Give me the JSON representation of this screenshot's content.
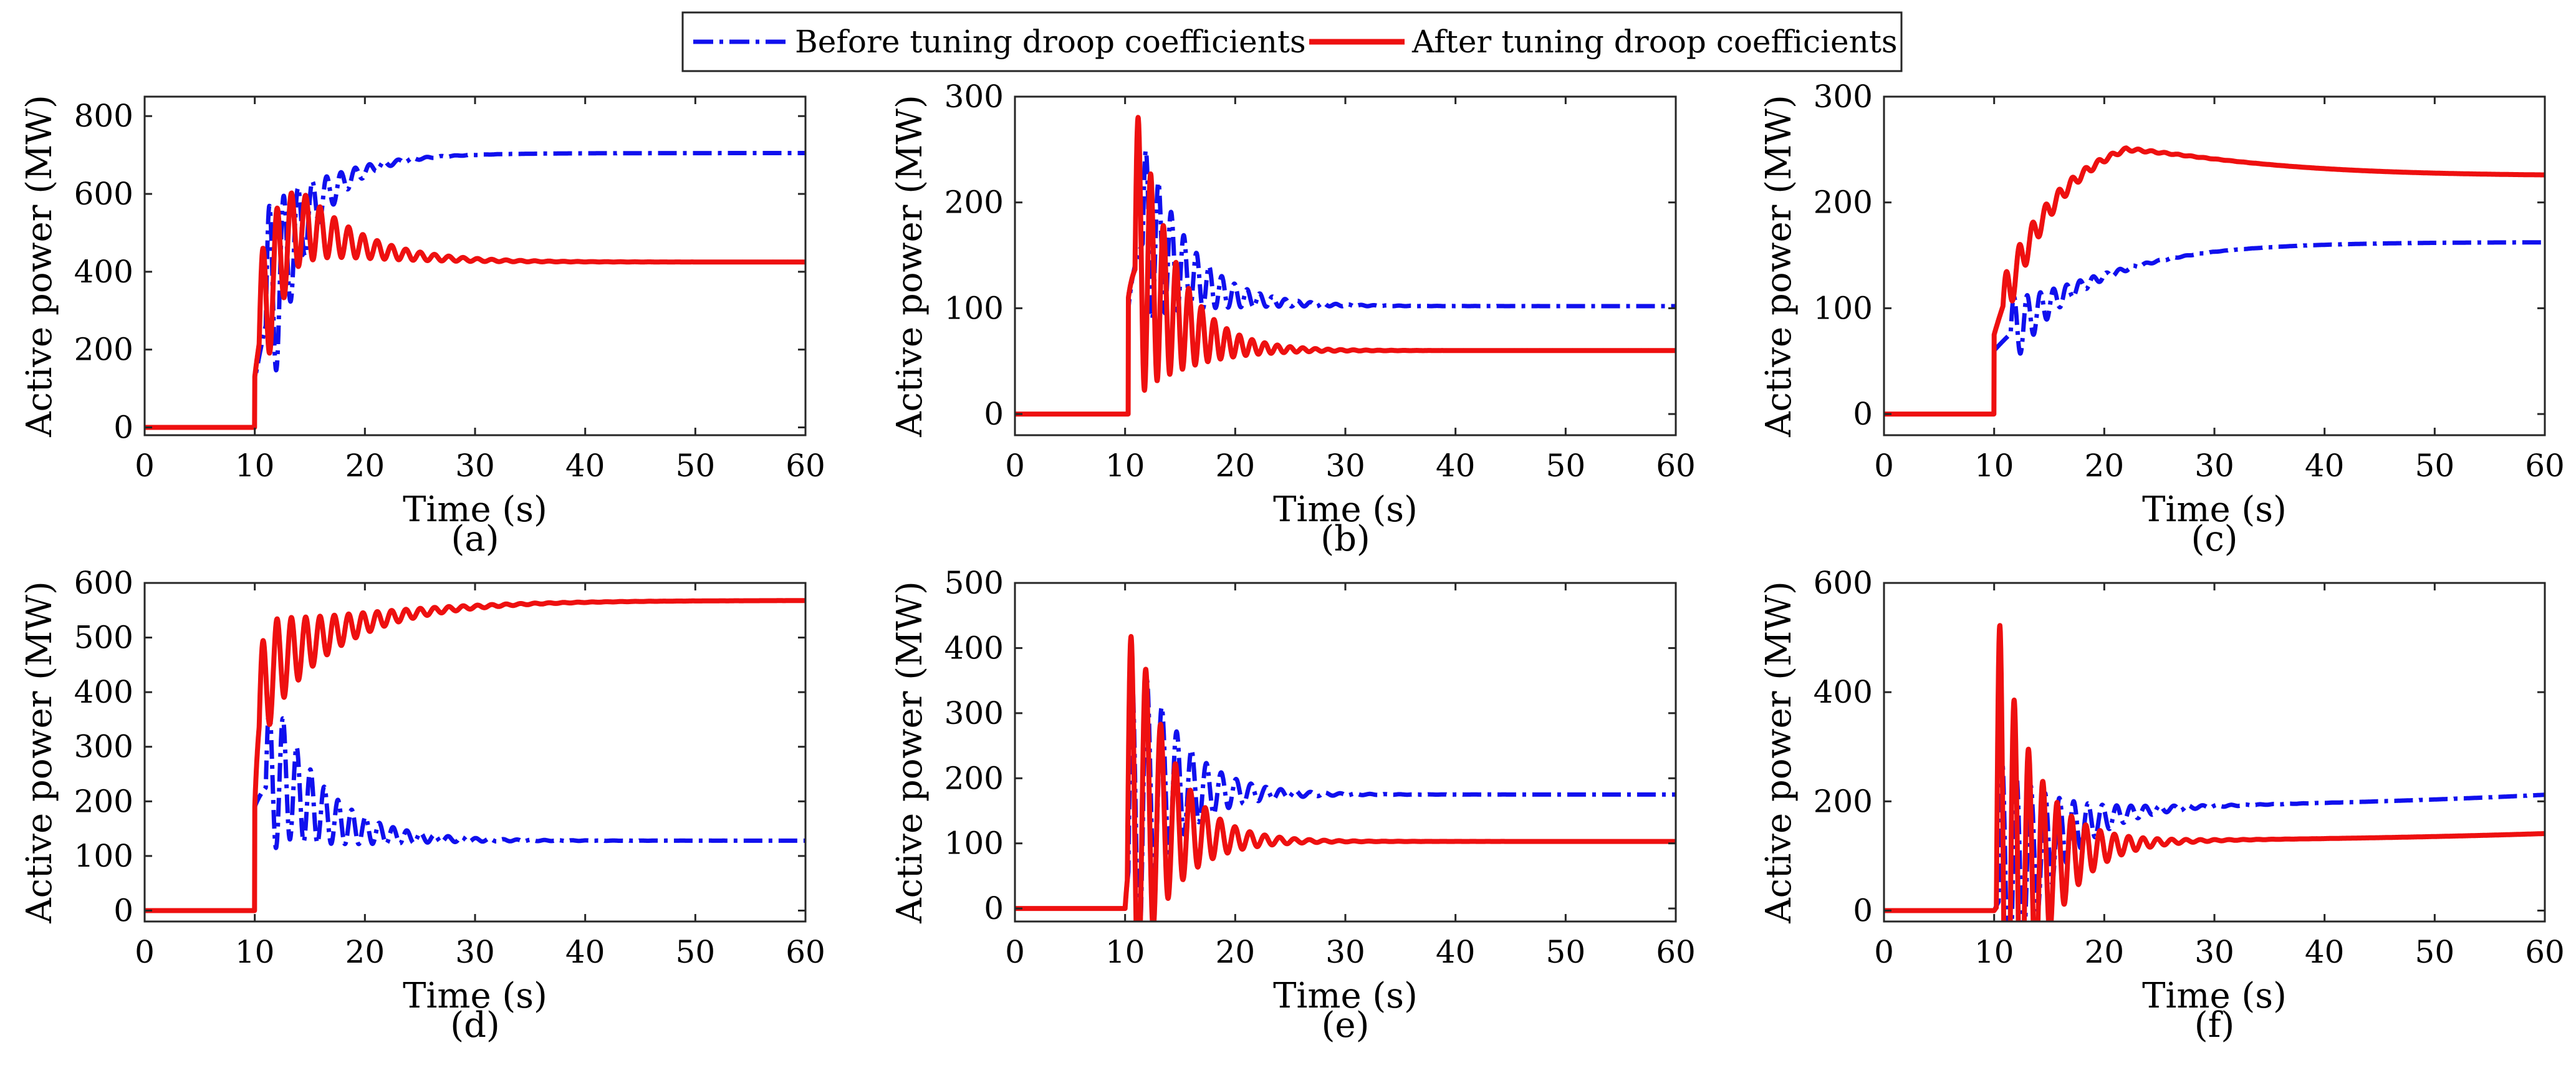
{
  "legend": {
    "before_label": "Before tuning droop coefficients",
    "after_label": "After tuning droop coefficients"
  },
  "colors": {
    "before": "#1010ee",
    "after": "#ee1010",
    "axis": "#262626"
  },
  "chart_data": [
    {
      "type": "line",
      "panel_label": "(a)",
      "xlabel": "Time (s)",
      "ylabel": "Active power (MW)",
      "xlim": [
        0,
        60
      ],
      "ylim": [
        -20,
        850
      ],
      "xticks": [
        0,
        10,
        20,
        30,
        40,
        50,
        60
      ],
      "yticks": [
        0,
        200,
        400,
        600,
        800
      ],
      "series": [
        {
          "name": "Before tuning droop coefficients",
          "model": {
            "t0": 10,
            "jump": 120,
            "peak": 680,
            "peak_time": 17.5,
            "overshoot_decay": 6,
            "final": 705,
            "drift": 0,
            "osc_amp": 300,
            "osc_decay": 3.0,
            "period": 1.3,
            "osc_start": 11
          }
        },
        {
          "name": "After tuning droop coefficients",
          "model": {
            "t0": 10,
            "jump": 130,
            "peak": 560,
            "peak_time": 14,
            "overshoot_decay": 5,
            "final": 425,
            "drift": 0,
            "osc_amp": 200,
            "osc_decay": 5.0,
            "period": 1.3,
            "osc_start": 10.4
          }
        }
      ]
    },
    {
      "type": "line",
      "panel_label": "(b)",
      "xlabel": "Time (s)",
      "ylabel": "Active power (MW)",
      "xlim": [
        0,
        60
      ],
      "ylim": [
        -20,
        300
      ],
      "xticks": [
        0,
        10,
        20,
        30,
        40,
        50,
        60
      ],
      "yticks": [
        0,
        100,
        200,
        300
      ],
      "series": [
        {
          "name": "Before tuning droop coefficients",
          "model": {
            "t0": 10.3,
            "jump": 100,
            "peak": 175,
            "peak_time": 12,
            "overshoot_decay": 4,
            "final": 102,
            "drift": 0,
            "osc_amp": 90,
            "osc_decay": 4.0,
            "period": 1.15,
            "osc_start": 11.6
          }
        },
        {
          "name": "After tuning droop coefficients",
          "model": {
            "t0": 10.3,
            "jump": 110,
            "peak": 150,
            "peak_time": 11.5,
            "overshoot_decay": 3,
            "final": 60,
            "drift": 0,
            "osc_amp": 150,
            "osc_decay": 3.5,
            "period": 1.15,
            "osc_start": 10.9
          }
        }
      ]
    },
    {
      "type": "line",
      "panel_label": "(c)",
      "xlabel": "Time (s)",
      "ylabel": "Active power (MW)",
      "xlim": [
        0,
        60
      ],
      "ylim": [
        -20,
        300
      ],
      "xticks": [
        0,
        10,
        20,
        30,
        40,
        50,
        60
      ],
      "yticks": [
        0,
        100,
        200,
        300
      ],
      "series": [
        {
          "name": "Before tuning droop coefficients",
          "model": {
            "t0": 10,
            "jump": 60,
            "peak": 165,
            "peak_time": 30,
            "overshoot_decay": 20,
            "final": 162,
            "drift": 0,
            "osc_amp": 35,
            "osc_decay": 3.5,
            "period": 1.2,
            "osc_start": 11.5
          }
        },
        {
          "name": "After tuning droop coefficients",
          "model": {
            "t0": 10,
            "jump": 75,
            "peak": 272,
            "peak_time": 22,
            "overshoot_decay": 10,
            "final": 225,
            "drift": 0,
            "osc_amp": 25,
            "osc_decay": 4.0,
            "period": 1.2,
            "osc_start": 10.8
          }
        }
      ]
    },
    {
      "type": "line",
      "panel_label": "(d)",
      "xlabel": "Time (s)",
      "ylabel": "Active power (MW)",
      "xlim": [
        0,
        60
      ],
      "ylim": [
        -20,
        600
      ],
      "xticks": [
        0,
        10,
        20,
        30,
        40,
        50,
        60
      ],
      "yticks": [
        0,
        100,
        200,
        300,
        400,
        500,
        600
      ],
      "series": [
        {
          "name": "Before tuning droop coefficients",
          "model": {
            "t0": 10,
            "jump": 190,
            "peak": 250,
            "peak_time": 12.5,
            "overshoot_decay": 4,
            "final": 128,
            "drift": 0,
            "osc_amp": 150,
            "osc_decay": 5.0,
            "period": 1.25,
            "osc_start": 11
          }
        },
        {
          "name": "After tuning droop coefficients",
          "model": {
            "t0": 10,
            "jump": 190,
            "peak": 440,
            "peak_time": 11,
            "overshoot_decay": 8,
            "final": 568,
            "drift": 0,
            "osc_amp": 110,
            "osc_decay": 5.5,
            "period": 1.3,
            "osc_start": 10.4
          }
        }
      ]
    },
    {
      "type": "line",
      "panel_label": "(e)",
      "xlabel": "Time (s)",
      "ylabel": "Active power (MW)",
      "xlim": [
        0,
        60
      ],
      "ylim": [
        -20,
        500
      ],
      "xticks": [
        0,
        10,
        20,
        30,
        40,
        50,
        60
      ],
      "yticks": [
        0,
        100,
        200,
        300,
        400,
        500
      ],
      "series": [
        {
          "name": "Before tuning droop coefficients",
          "model": {
            "t0": 10,
            "jump": 0,
            "peak": 200,
            "peak_time": 12,
            "overshoot_decay": 4,
            "final": 175,
            "drift": 0,
            "osc_amp": 270,
            "osc_decay": 3.8,
            "period": 1.35,
            "osc_start": 10.3
          }
        },
        {
          "name": "After tuning droop coefficients",
          "model": {
            "t0": 10,
            "jump": 0,
            "peak": 170,
            "peak_time": 11.5,
            "overshoot_decay": 3,
            "final": 103,
            "drift": 0,
            "osc_amp": 360,
            "osc_decay": 3.3,
            "period": 1.35,
            "osc_start": 10.2
          }
        }
      ]
    },
    {
      "type": "line",
      "panel_label": "(f)",
      "xlabel": "Time (s)",
      "ylabel": "Active power (MW)",
      "xlim": [
        0,
        60
      ],
      "ylim": [
        -20,
        600
      ],
      "xticks": [
        0,
        10,
        20,
        30,
        40,
        50,
        60
      ],
      "yticks": [
        0,
        200,
        400,
        600
      ],
      "series": [
        {
          "name": "Before tuning droop coefficients",
          "model": {
            "t0": 10,
            "jump": 0,
            "peak": 190,
            "peak_time": 20,
            "overshoot_decay": 10,
            "final": 195,
            "drift": 0.0014,
            "osc_amp": 270,
            "osc_decay": 4.0,
            "period": 1.3,
            "osc_start": 10.4
          }
        },
        {
          "name": "After tuning droop coefficients",
          "model": {
            "t0": 10,
            "jump": 0,
            "peak": 130,
            "peak_time": 20,
            "overshoot_decay": 10,
            "final": 130,
            "drift": 0.0009,
            "osc_amp": 560,
            "osc_decay": 3.3,
            "period": 1.3,
            "osc_start": 10.2
          }
        }
      ]
    }
  ]
}
